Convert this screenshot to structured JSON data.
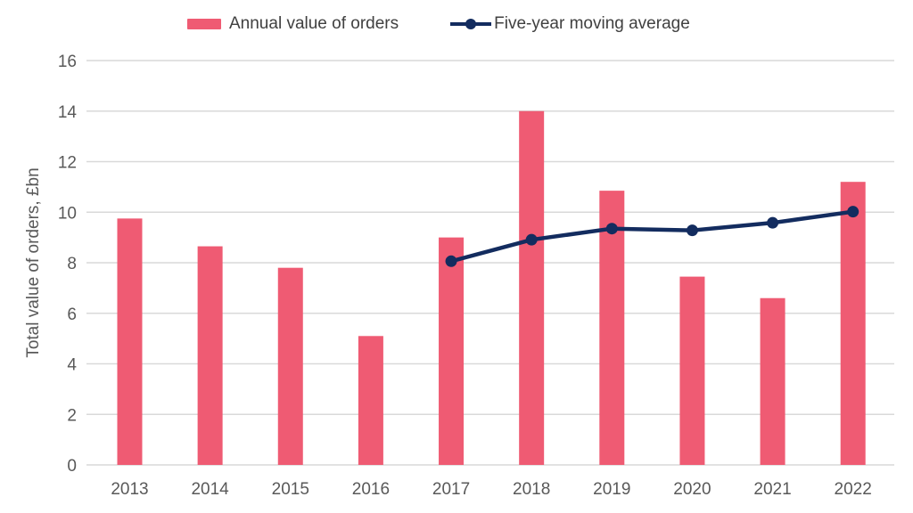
{
  "legend": {
    "bars_label": "Annual value of orders",
    "line_label": "Five-year moving average"
  },
  "axes": {
    "y_title": "Total value of orders, £bn"
  },
  "colors": {
    "bar": "#EF5B73",
    "line": "#132C5F",
    "grid": "#D9D9D9",
    "axis_text": "#595959",
    "legend_text": "#404040",
    "background": "#FFFFFF"
  },
  "chart_data": {
    "type": "bar",
    "title": "",
    "xlabel": "",
    "ylabel": "Total value of orders, £bn",
    "categories": [
      "2013",
      "2014",
      "2015",
      "2016",
      "2017",
      "2018",
      "2019",
      "2020",
      "2021",
      "2022"
    ],
    "series": [
      {
        "name": "Annual value of orders",
        "type": "bar",
        "color": "#EF5B73",
        "values": [
          9.75,
          8.65,
          7.8,
          5.1,
          9.0,
          14.0,
          10.85,
          7.45,
          6.6,
          11.2
        ]
      },
      {
        "name": "Five-year moving average",
        "type": "line",
        "color": "#132C5F",
        "values": [
          null,
          null,
          null,
          null,
          8.06,
          8.91,
          9.35,
          9.28,
          9.58,
          10.02
        ]
      }
    ],
    "ylim": [
      0,
      16
    ],
    "yticks": [
      0,
      2,
      4,
      6,
      8,
      10,
      12,
      14,
      16
    ],
    "grid": true,
    "legend_position": "top"
  }
}
